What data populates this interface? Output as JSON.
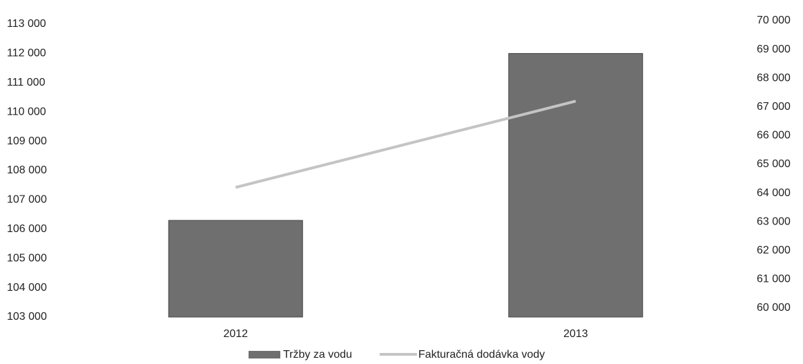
{
  "chart_data": {
    "type": "bar",
    "categories": [
      "2012",
      "2013"
    ],
    "series": [
      {
        "name": "Tržby za vodu",
        "color": "#6f6f6f",
        "type": "bar",
        "values": [
          106300,
          112000
        ]
      },
      {
        "name": "Fakturačná dodávka vody",
        "color": "#c4c4c4",
        "type": "line",
        "axis": "y2",
        "values": [
          64200,
          67200
        ]
      }
    ],
    "ylim": [
      103000,
      113000
    ],
    "yticks": [
      {
        "value": 103000,
        "label": "103 000"
      },
      {
        "value": 104000,
        "label": "104 000"
      },
      {
        "value": 105000,
        "label": "105 000"
      },
      {
        "value": 106000,
        "label": "106 000"
      },
      {
        "value": 107000,
        "label": "107 000"
      },
      {
        "value": 108000,
        "label": "108 000"
      },
      {
        "value": 109000,
        "label": "109 000"
      },
      {
        "value": 110000,
        "label": "110 000"
      },
      {
        "value": 111000,
        "label": "111 000"
      },
      {
        "value": 112000,
        "label": "112 000"
      },
      {
        "value": 113000,
        "label": "113 000"
      }
    ],
    "y2lim": [
      60000,
      70000
    ],
    "y2ticks": [
      {
        "value": 60000,
        "label": "60 000"
      },
      {
        "value": 61000,
        "label": "61 000"
      },
      {
        "value": 62000,
        "label": "62 000"
      },
      {
        "value": 63000,
        "label": "63 000"
      },
      {
        "value": 64000,
        "label": "64 000"
      },
      {
        "value": 65000,
        "label": "65 000"
      },
      {
        "value": 66000,
        "label": "66 000"
      },
      {
        "value": 67000,
        "label": "67 000"
      },
      {
        "value": 68000,
        "label": "68 000"
      },
      {
        "value": 69000,
        "label": "69 000"
      },
      {
        "value": 70000,
        "label": "70 000"
      }
    ],
    "grid": false,
    "legend": "bottom"
  }
}
